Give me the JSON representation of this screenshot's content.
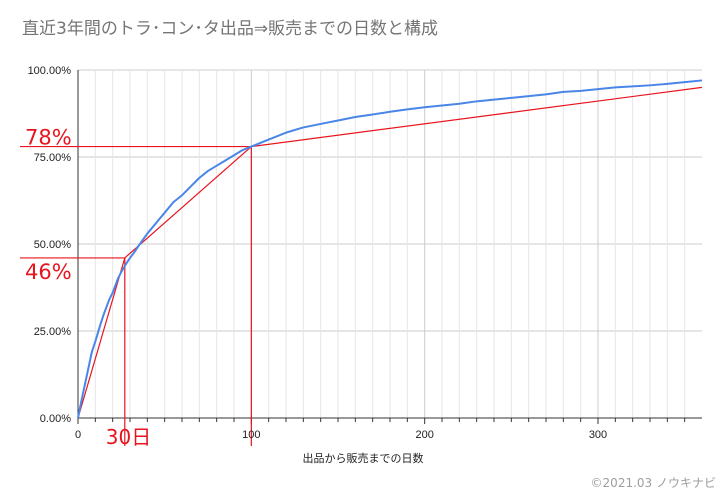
{
  "title": "直近3年間のトラ･コン･タ出品⇒販売までの日数と構成",
  "credit": "©2021.03 ノウキナビ",
  "colors": {
    "series": "#4a86e8",
    "annotation": "#e8141e",
    "grid": "#cccccc",
    "axis": "#333333"
  },
  "chart_data": {
    "type": "line",
    "title": "直近3年間のトラ･コン･タ出品⇒販売までの日数と構成",
    "xlabel": "出品から販売までの日数",
    "ylabel": "",
    "xlim": [
      0,
      360
    ],
    "ylim": [
      0,
      1
    ],
    "x_ticks": [
      0,
      100,
      200,
      300
    ],
    "x_tick_labels": [
      "0",
      "100",
      "200",
      "300"
    ],
    "y_ticks": [
      0,
      0.25,
      0.5,
      0.75,
      1.0
    ],
    "y_tick_labels": [
      "0.00%",
      "25.00%",
      "50.00%",
      "75.00%",
      "100.00%"
    ],
    "grid": true,
    "series": [
      {
        "x": [
          0,
          2,
          5,
          8,
          10,
          13,
          15,
          18,
          20,
          23,
          25,
          28,
          30,
          33,
          35,
          40,
          45,
          50,
          55,
          60,
          65,
          70,
          75,
          80,
          85,
          90,
          95,
          100,
          110,
          120,
          130,
          140,
          150,
          160,
          170,
          180,
          190,
          200,
          210,
          220,
          230,
          240,
          250,
          260,
          270,
          280,
          290,
          300,
          310,
          320,
          330,
          340,
          350,
          360
        ],
        "y": [
          0,
          0.05,
          0.12,
          0.19,
          0.22,
          0.27,
          0.3,
          0.34,
          0.36,
          0.4,
          0.42,
          0.445,
          0.46,
          0.48,
          0.495,
          0.53,
          0.56,
          0.59,
          0.62,
          0.64,
          0.665,
          0.69,
          0.71,
          0.725,
          0.74,
          0.755,
          0.77,
          0.78,
          0.8,
          0.82,
          0.835,
          0.845,
          0.855,
          0.865,
          0.872,
          0.88,
          0.887,
          0.893,
          0.898,
          0.903,
          0.91,
          0.915,
          0.92,
          0.925,
          0.93,
          0.937,
          0.94,
          0.945,
          0.95,
          0.953,
          0.956,
          0.96,
          0.965,
          0.97
        ]
      }
    ],
    "annotation_lines": [
      {
        "x": [
          0,
          27,
          100,
          360
        ],
        "y": [
          0,
          0.46,
          0.78,
          0.95
        ]
      }
    ],
    "markers": [
      {
        "x": 27,
        "y": 0.46,
        "x_label": "30日",
        "y_label": "46%"
      },
      {
        "x": 100,
        "y": 0.78,
        "x_label": "",
        "y_label": "78%"
      }
    ]
  }
}
